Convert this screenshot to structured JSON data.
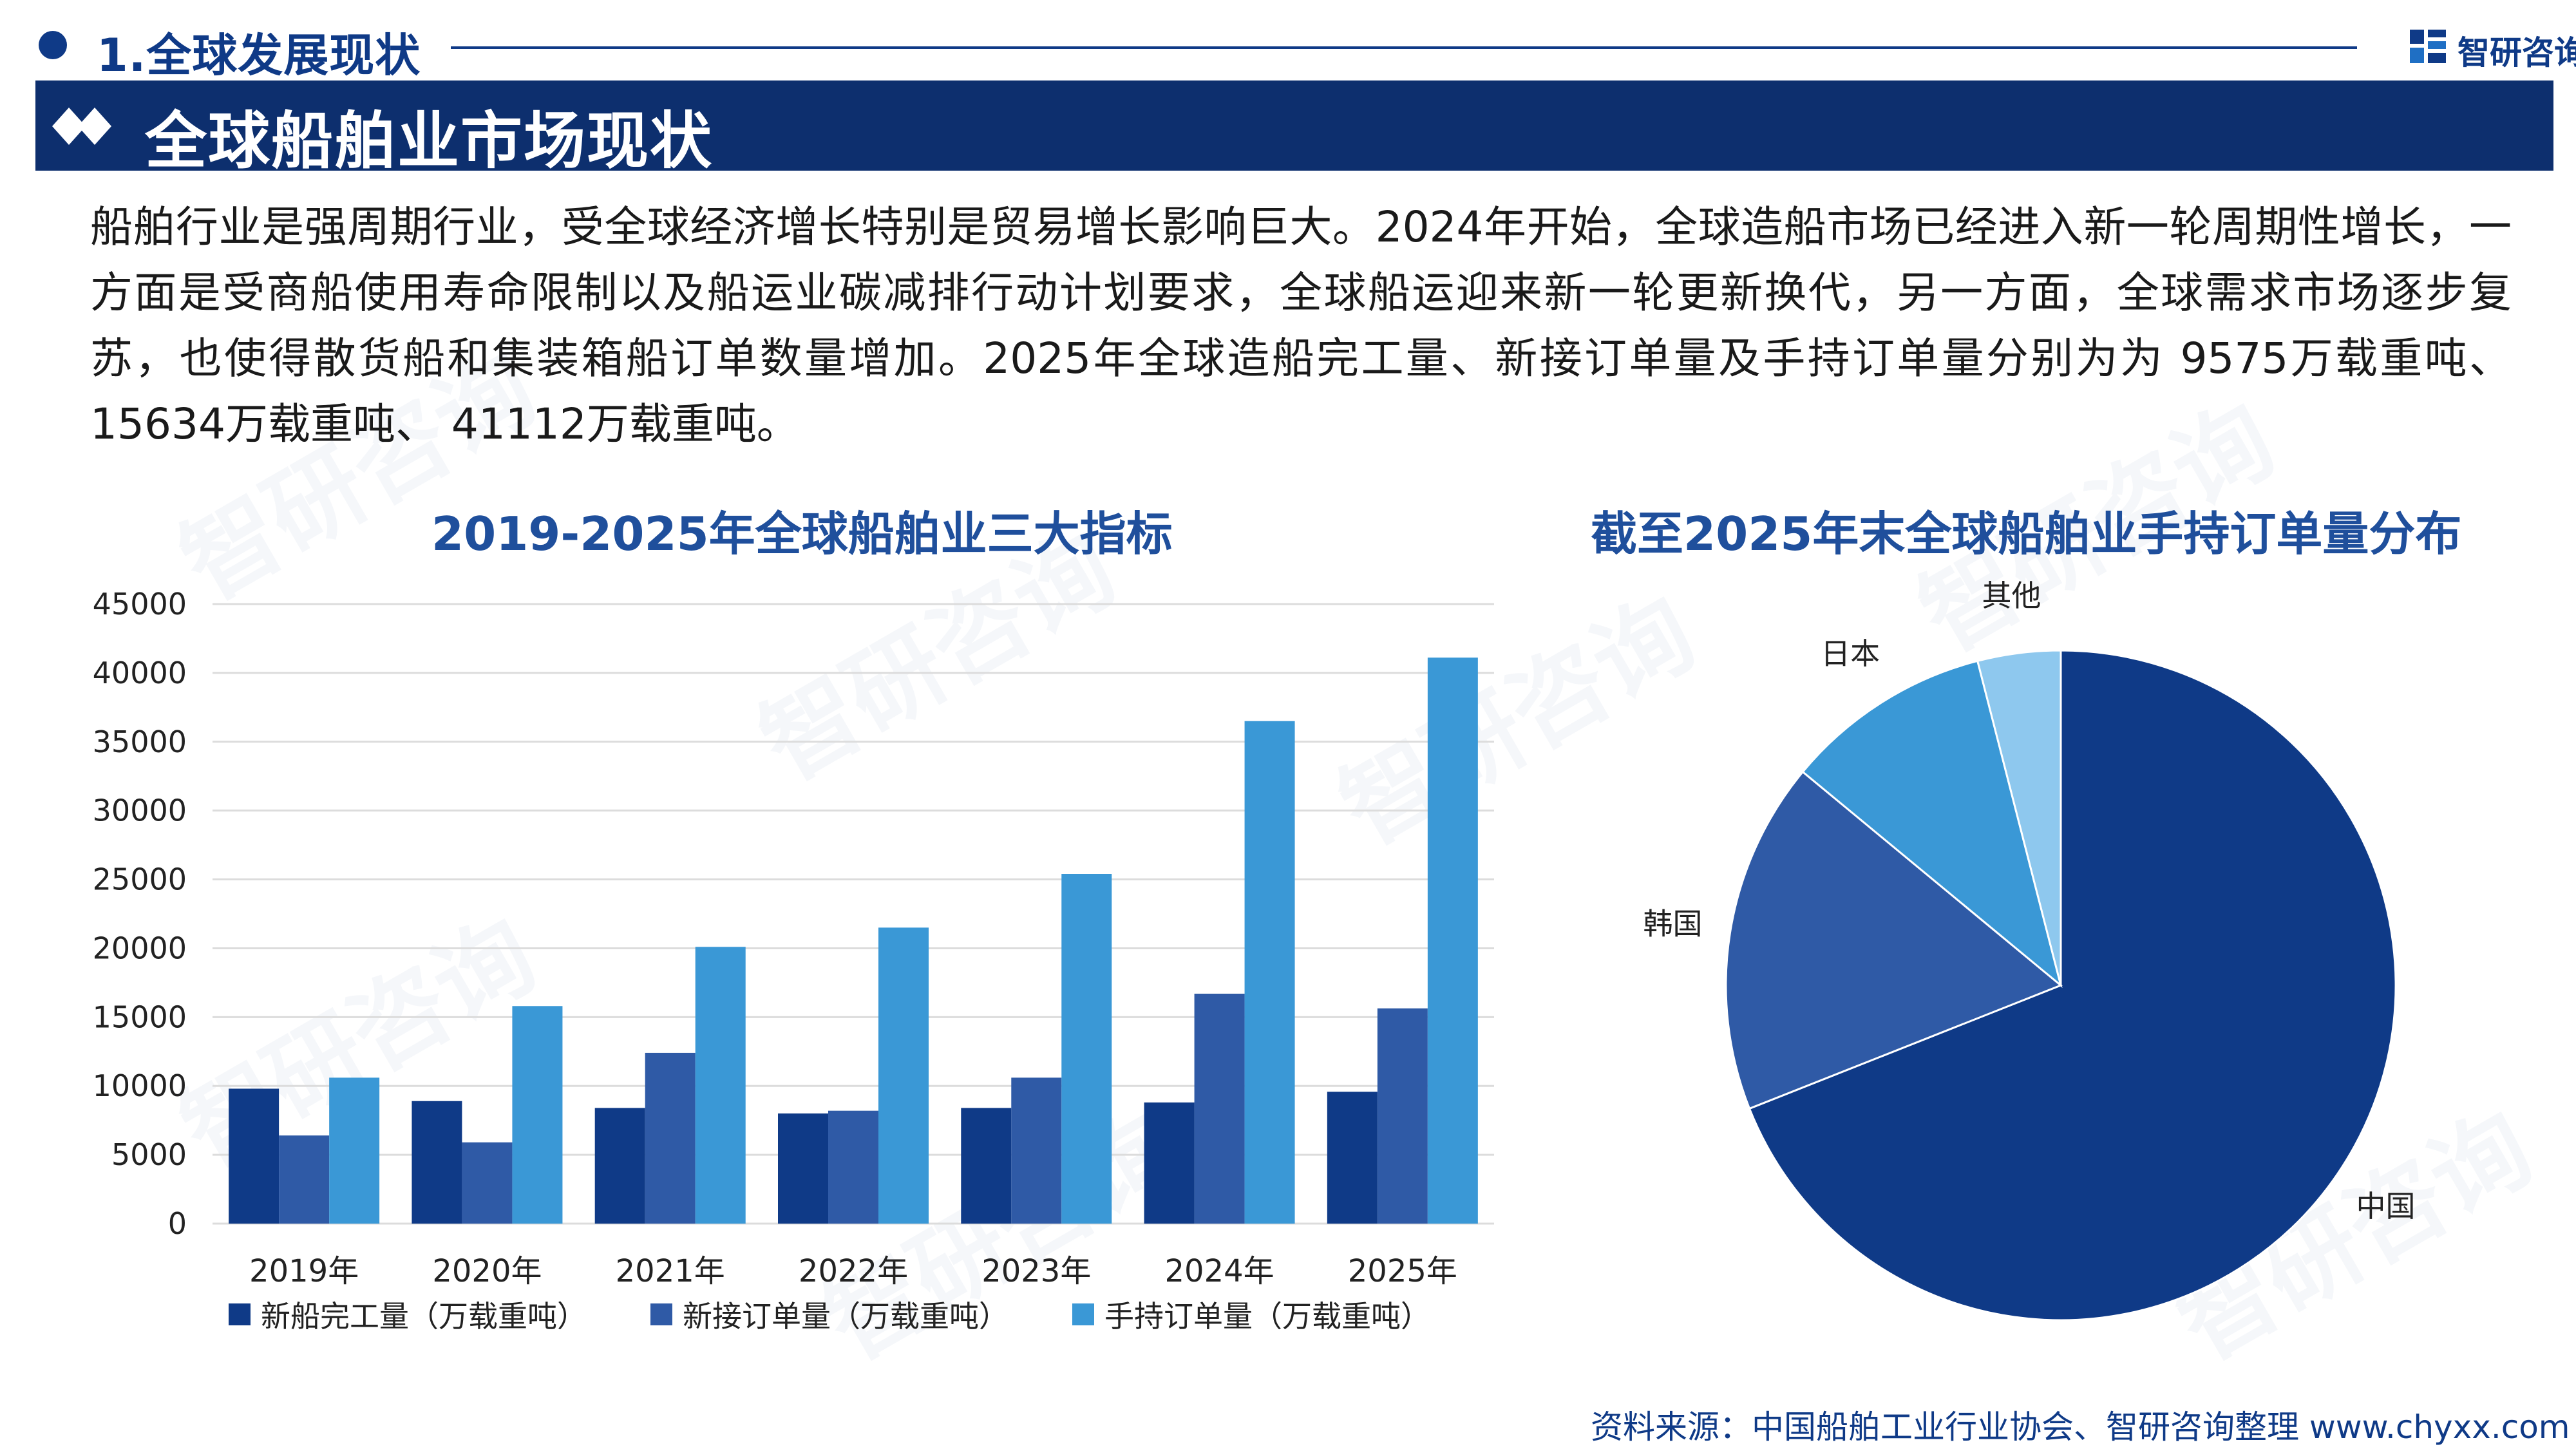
{
  "header": {
    "section": "1.全球发展现状",
    "brand": "智研咨询"
  },
  "banner": {
    "title": "全球船舶业市场现状"
  },
  "intro": "船舶行业是强周期行业，受全球经济增长特别是贸易增长影响巨大。2024年开始，全球造船市场已经进入新一轮周期性增长，一方面是受商船使用寿命限制以及船运业碳减排行动计划要求，全球船运迎来新一轮更新换代，另一方面，全球需求市场逐步复苏，也使得散货船和集装箱船订单数量增加。2025年全球造船完工量、新接订单量及手持订单量分别为为 9575万载重吨、15634万载重吨、 41112万载重吨。",
  "source": "资料来源：中国船舶工业行业协会、智研咨询整理  www.chyxx.com",
  "watermark": "智研咨询",
  "colors": {
    "navy": "#0f3a87",
    "blue": "#2f5aa6",
    "light": "#3a98d6",
    "pale": "#8ec8ee"
  },
  "chart_data": [
    {
      "type": "bar",
      "title": "2019-2025年全球船舶业三大指标",
      "categories": [
        "2019年",
        "2020年",
        "2021年",
        "2022年",
        "2023年",
        "2024年",
        "2025年"
      ],
      "series": [
        {
          "name": "新船完工量（万载重吨）",
          "color": "#0f3a87",
          "values": [
            9800,
            8900,
            8400,
            8000,
            8400,
            8800,
            9575
          ]
        },
        {
          "name": "新接订单量（万载重吨）",
          "color": "#2f5aa6",
          "values": [
            6400,
            5900,
            12400,
            8200,
            10600,
            16700,
            15634
          ]
        },
        {
          "name": "手持订单量（万载重吨）",
          "color": "#3a98d6",
          "values": [
            10600,
            15800,
            20100,
            21500,
            25400,
            36500,
            41112
          ]
        }
      ],
      "ylim": [
        0,
        45000
      ],
      "yticks": [
        "0",
        "5000",
        "10000",
        "15000",
        "20000",
        "25000",
        "30000",
        "35000",
        "40000",
        "45000"
      ],
      "grid": true,
      "legend": "bottom"
    },
    {
      "type": "pie",
      "title": "截至2025年末全球船舶业手持订单量分布",
      "slices": [
        {
          "label": "中国",
          "value": 69,
          "color": "#0f3a87"
        },
        {
          "label": "韩国",
          "value": 17,
          "color": "#2f5aa6"
        },
        {
          "label": "日本",
          "value": 10,
          "color": "#3a98d6"
        },
        {
          "label": "其他",
          "value": 4,
          "color": "#8ec8ee"
        }
      ],
      "start": "12 o'clock, clockwise"
    }
  ]
}
